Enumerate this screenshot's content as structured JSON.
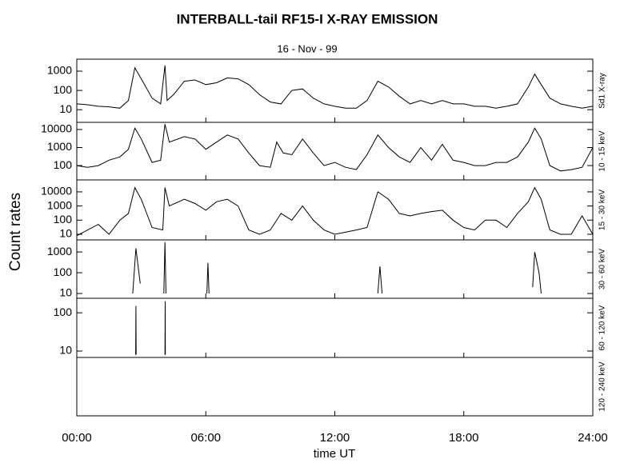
{
  "chart_data": [
    {
      "type": "line",
      "title": "INTERBALL-tail  RF15-I   X-RAY  EMISSION",
      "subtitle": "16 - Nov - 99",
      "ylabel": "Count rates",
      "axis_label": "Sd1 X-ray",
      "log_scale": true,
      "ylim": [
        2.2,
        4200
      ],
      "yticks": [
        10,
        100,
        1000
      ],
      "x": [
        0,
        0.5,
        1,
        1.5,
        2,
        2.4,
        2.7,
        3,
        3.5,
        3.9,
        4.1,
        4.2,
        4.5,
        5,
        5.5,
        6,
        6.5,
        7,
        7.5,
        8,
        8.5,
        9,
        9.5,
        10,
        10.5,
        11,
        11.5,
        12,
        12.5,
        13,
        13.5,
        14,
        14.5,
        15,
        15.5,
        16,
        16.5,
        17,
        17.5,
        18,
        18.5,
        19,
        19.5,
        20,
        20.5,
        21,
        21.3,
        21.6,
        22,
        22.5,
        23,
        23.5,
        24
      ],
      "series": [
        {
          "color": "#000000",
          "values": [
            20,
            18,
            15,
            14,
            12,
            30,
            1500,
            400,
            40,
            20,
            2000,
            30,
            60,
            300,
            350,
            200,
            250,
            450,
            400,
            200,
            60,
            25,
            20,
            100,
            120,
            40,
            20,
            15,
            12,
            12,
            30,
            300,
            150,
            50,
            20,
            30,
            20,
            30,
            20,
            20,
            15,
            15,
            12,
            15,
            20,
            150,
            700,
            200,
            40,
            20,
            15,
            12,
            15
          ]
        }
      ]
    },
    {
      "type": "line",
      "axis_label": "10 - 15 keV",
      "log_scale": true,
      "ylim": [
        16,
        25000
      ],
      "yticks": [
        100,
        1000,
        10000
      ],
      "x": [
        0,
        0.5,
        1,
        1.5,
        2,
        2.4,
        2.7,
        3,
        3.5,
        3.9,
        4.1,
        4.3,
        5,
        5.5,
        6,
        6.5,
        7,
        7.5,
        8,
        8.5,
        9,
        9.3,
        9.6,
        10,
        10.5,
        11,
        11.5,
        12,
        12.5,
        13,
        13.5,
        14,
        14.5,
        15,
        15.5,
        16,
        16.5,
        17,
        17.5,
        18,
        18.5,
        19,
        19.5,
        20,
        20.5,
        21,
        21.3,
        21.6,
        22,
        22.5,
        23,
        23.5,
        24
      ],
      "series": [
        {
          "color": "#000000",
          "values": [
            100,
            80,
            100,
            200,
            300,
            800,
            12000,
            3000,
            150,
            200,
            20000,
            2000,
            4000,
            3000,
            800,
            2000,
            5000,
            3000,
            500,
            100,
            80,
            2000,
            500,
            400,
            3000,
            500,
            100,
            150,
            80,
            60,
            400,
            5000,
            1000,
            300,
            150,
            1000,
            200,
            1500,
            200,
            150,
            100,
            100,
            150,
            150,
            300,
            2000,
            12000,
            3000,
            100,
            50,
            60,
            80,
            1000
          ]
        }
      ]
    },
    {
      "type": "line",
      "axis_label": "15 - 30 keV",
      "log_scale": true,
      "ylim": [
        4,
        70000
      ],
      "yticks": [
        10,
        100,
        1000,
        10000
      ],
      "x": [
        0,
        1,
        1.5,
        2,
        2.4,
        2.7,
        3,
        3.5,
        4,
        4.1,
        4.3,
        5,
        5.5,
        6,
        6.5,
        7,
        7.5,
        8,
        8.5,
        9,
        9.5,
        10,
        10.5,
        11,
        11.5,
        12,
        13,
        13.5,
        14,
        14.5,
        15,
        15.5,
        16,
        16.5,
        17,
        17.5,
        18,
        18.5,
        19,
        19.5,
        20,
        20.5,
        21,
        21.3,
        21.6,
        22,
        22.5,
        23,
        23.5,
        24
      ],
      "series": [
        {
          "color": "#000000",
          "values": [
            8,
            50,
            10,
            100,
            300,
            20000,
            3000,
            30,
            20,
            20000,
            1000,
            3000,
            1500,
            500,
            2000,
            3000,
            1000,
            20,
            10,
            20,
            300,
            100,
            1000,
            100,
            20,
            10,
            20,
            30,
            10000,
            3000,
            300,
            200,
            300,
            400,
            500,
            100,
            30,
            20,
            100,
            100,
            30,
            300,
            2000,
            20000,
            3000,
            20,
            10,
            10,
            200,
            10
          ]
        }
      ]
    },
    {
      "type": "line",
      "axis_label": "30 - 60 keV",
      "log_scale": true,
      "ylim": [
        5.9,
        3800
      ],
      "yticks": [
        10,
        100,
        1000
      ],
      "x": [
        2.6,
        2.75,
        2.95,
        3.5,
        4.05,
        4.1,
        4.15,
        5,
        6.05,
        6.1,
        6.15,
        10,
        14,
        14.1,
        14.2,
        18,
        21.2,
        21.3,
        21.5,
        21.6
      ],
      "series": [
        {
          "color": "#000000",
          "values": [
            10,
            1500,
            30,
            null,
            10,
            3000,
            10,
            null,
            10,
            300,
            10,
            null,
            10,
            200,
            10,
            null,
            20,
            1000,
            100,
            10
          ]
        }
      ]
    },
    {
      "type": "line",
      "axis_label": "60 - 120 keV",
      "log_scale": true,
      "ylim": [
        6.8,
        240
      ],
      "yticks": [
        10,
        100
      ],
      "x": [
        2.74,
        2.75,
        2.76,
        3.5,
        4.1,
        4.11,
        4.12
      ],
      "series": [
        {
          "color": "#000000",
          "values": [
            8,
            150,
            8,
            null,
            8,
            200,
            8
          ]
        }
      ]
    },
    {
      "type": "line",
      "axis_label": "120 - 240 keV",
      "xlabel": "time UT",
      "xlim": [
        0,
        24
      ],
      "xticks": [
        {
          "value": 0,
          "label": "00:00"
        },
        {
          "value": 6,
          "label": "06:00"
        },
        {
          "value": 12,
          "label": "12:00"
        },
        {
          "value": 18,
          "label": "18:00"
        },
        {
          "value": 24,
          "label": "24:00"
        }
      ],
      "series": []
    }
  ]
}
